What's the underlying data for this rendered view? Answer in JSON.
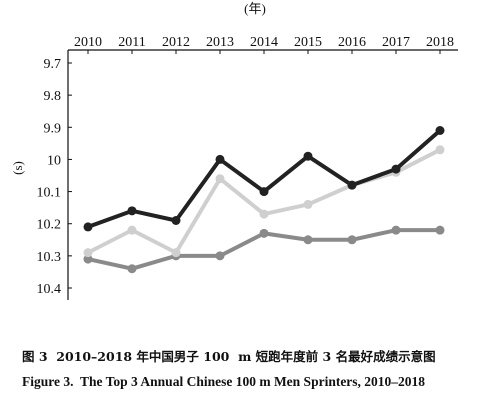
{
  "figure": {
    "caption_zh": "图 3  2010–2018 年中国男子 100  m 短跑年度前 3 名最好成绩示意图",
    "caption_en": "Figure 3.  The Top 3 Annual Chinese 100 m Men Sprinters, 2010–2018"
  },
  "chart_data": {
    "type": "line",
    "x": [
      2010,
      2011,
      2012,
      2013,
      2014,
      2015,
      2016,
      2017,
      2018
    ],
    "xlabel": "(年)",
    "ylabel": "(s)",
    "x_axis_position": "top",
    "ylim": [
      9.7,
      10.4
    ],
    "y_inverted": true,
    "y_ticks": [
      9.7,
      9.8,
      9.9,
      10,
      10.1,
      10.2,
      10.3,
      10.4
    ],
    "grid": false,
    "legend": "none",
    "series": [
      {
        "color": "#8a8a8a",
        "marker": "circle",
        "values": [
          10.31,
          10.34,
          10.3,
          10.3,
          10.23,
          10.25,
          10.25,
          10.22,
          10.22
        ]
      },
      {
        "color": "#cfcfcf",
        "marker": "circle",
        "values": [
          10.29,
          10.22,
          10.29,
          10.06,
          10.17,
          10.14,
          10.08,
          10.04,
          9.97
        ]
      },
      {
        "color": "#222222",
        "marker": "circle",
        "values": [
          10.21,
          10.16,
          10.19,
          10.0,
          10.1,
          9.99,
          10.08,
          10.03,
          9.91
        ]
      }
    ]
  }
}
